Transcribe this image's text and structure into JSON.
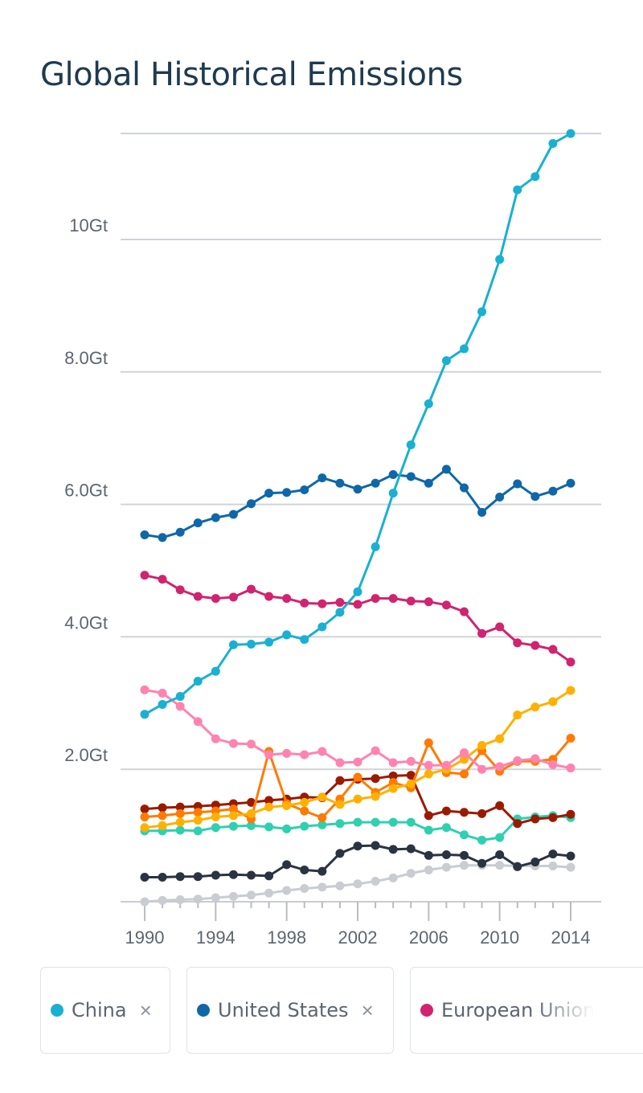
{
  "page": {
    "title": "Global Historical Emissions"
  },
  "legend": [
    {
      "name": "China",
      "color": "#1ab0d1",
      "removable": true,
      "remove_icon": "×"
    },
    {
      "name": "United States",
      "color": "#0f67a8",
      "removable": true,
      "remove_icon": "×"
    },
    {
      "name": "European Union",
      "color": "#d0246f",
      "removable": false,
      "remove_icon": ""
    }
  ],
  "chart_data": {
    "type": "line",
    "title": "Global Historical Emissions",
    "xlabel": "",
    "ylabel": "",
    "x": [
      1990,
      1991,
      1992,
      1993,
      1994,
      1995,
      1996,
      1997,
      1998,
      1999,
      2000,
      2001,
      2002,
      2003,
      2004,
      2005,
      2006,
      2007,
      2008,
      2009,
      2010,
      2011,
      2012,
      2013,
      2014
    ],
    "x_ticks": [
      "1990",
      "1994",
      "1998",
      "2002",
      "2006",
      "2010",
      "2014"
    ],
    "y_ticks": [
      {
        "value": 2.0,
        "label": "2.0Gt"
      },
      {
        "value": 4.0,
        "label": "4.0Gt"
      },
      {
        "value": 6.0,
        "label": "6.0Gt"
      },
      {
        "value": 8.0,
        "label": "8.0Gt"
      },
      {
        "value": 10.0,
        "label": "10Gt"
      },
      {
        "value": 11.6,
        "label": ""
      }
    ],
    "ylim": [
      0,
      11.6
    ],
    "xlim": [
      1990,
      2014
    ],
    "grid": true,
    "series": [
      {
        "name": "China",
        "color": "#1ab0d1",
        "values": [
          2.83,
          2.98,
          3.1,
          3.33,
          3.48,
          3.88,
          3.89,
          3.92,
          4.03,
          3.96,
          4.15,
          4.37,
          4.68,
          5.36,
          6.17,
          6.9,
          7.52,
          8.17,
          8.35,
          8.91,
          9.7,
          10.75,
          10.95,
          11.45,
          11.6
        ]
      },
      {
        "name": "United States",
        "color": "#0f67a8",
        "values": [
          5.54,
          5.5,
          5.58,
          5.72,
          5.8,
          5.85,
          6.01,
          6.17,
          6.18,
          6.22,
          6.4,
          6.32,
          6.23,
          6.32,
          6.45,
          6.42,
          6.32,
          6.53,
          6.25,
          5.88,
          6.11,
          6.31,
          6.12,
          6.2,
          6.32
        ]
      },
      {
        "name": "European Union",
        "color": "#d0246f",
        "values": [
          4.93,
          4.87,
          4.71,
          4.61,
          4.58,
          4.6,
          4.72,
          4.61,
          4.58,
          4.51,
          4.5,
          4.52,
          4.49,
          4.58,
          4.58,
          4.54,
          4.53,
          4.48,
          4.38,
          4.05,
          4.15,
          3.91,
          3.87,
          3.81,
          3.62
        ]
      },
      {
        "name": "",
        "color": "#ff83b0",
        "values": [
          3.2,
          3.15,
          2.95,
          2.72,
          2.46,
          2.39,
          2.38,
          2.22,
          2.24,
          2.22,
          2.27,
          2.1,
          2.11,
          2.28,
          2.1,
          2.12,
          2.06,
          2.06,
          2.25,
          2.0,
          2.04,
          2.13,
          2.16,
          2.07,
          2.02
        ]
      },
      {
        "name": "",
        "color": "#ffb000",
        "values": [
          1.12,
          1.15,
          1.2,
          1.23,
          1.28,
          1.3,
          1.33,
          1.43,
          1.45,
          1.5,
          1.58,
          1.47,
          1.55,
          1.59,
          1.71,
          1.78,
          1.93,
          2.0,
          2.15,
          2.36,
          2.46,
          2.82,
          2.94,
          3.02,
          3.19
        ]
      },
      {
        "name": "",
        "color": "#ff7a00",
        "values": [
          1.28,
          1.3,
          1.33,
          1.35,
          1.37,
          1.4,
          1.25,
          2.27,
          1.48,
          1.37,
          1.27,
          1.55,
          1.88,
          1.65,
          1.8,
          1.72,
          2.4,
          1.95,
          1.93,
          2.28,
          1.97,
          2.12,
          2.12,
          2.15,
          2.47
        ]
      },
      {
        "name": "",
        "color": "#9a1a00",
        "values": [
          1.4,
          1.42,
          1.43,
          1.44,
          1.46,
          1.48,
          1.5,
          1.53,
          1.55,
          1.58,
          1.57,
          1.83,
          1.85,
          1.86,
          1.9,
          1.91,
          1.3,
          1.37,
          1.35,
          1.33,
          1.45,
          1.18,
          1.25,
          1.27,
          1.32
        ]
      },
      {
        "name": "",
        "color": "#2fd0b0",
        "values": [
          1.07,
          1.07,
          1.08,
          1.07,
          1.12,
          1.14,
          1.15,
          1.13,
          1.1,
          1.14,
          1.16,
          1.18,
          1.2,
          1.2,
          1.2,
          1.2,
          1.08,
          1.12,
          1.01,
          0.93,
          0.97,
          1.25,
          1.28,
          1.3,
          1.27
        ]
      },
      {
        "name": "",
        "color": "#2a3440",
        "values": [
          0.37,
          0.37,
          0.38,
          0.38,
          0.4,
          0.41,
          0.4,
          0.39,
          0.56,
          0.48,
          0.46,
          0.73,
          0.84,
          0.85,
          0.79,
          0.8,
          0.7,
          0.71,
          0.7,
          0.58,
          0.71,
          0.53,
          0.6,
          0.72,
          0.69
        ]
      },
      {
        "name": "",
        "color": "#c9ccd1",
        "values": [
          0.0,
          0.02,
          0.03,
          0.04,
          0.06,
          0.08,
          0.1,
          0.13,
          0.17,
          0.2,
          0.22,
          0.24,
          0.27,
          0.31,
          0.36,
          0.43,
          0.48,
          0.52,
          0.55,
          0.55,
          0.55,
          0.54,
          0.54,
          0.54,
          0.52
        ]
      }
    ]
  }
}
